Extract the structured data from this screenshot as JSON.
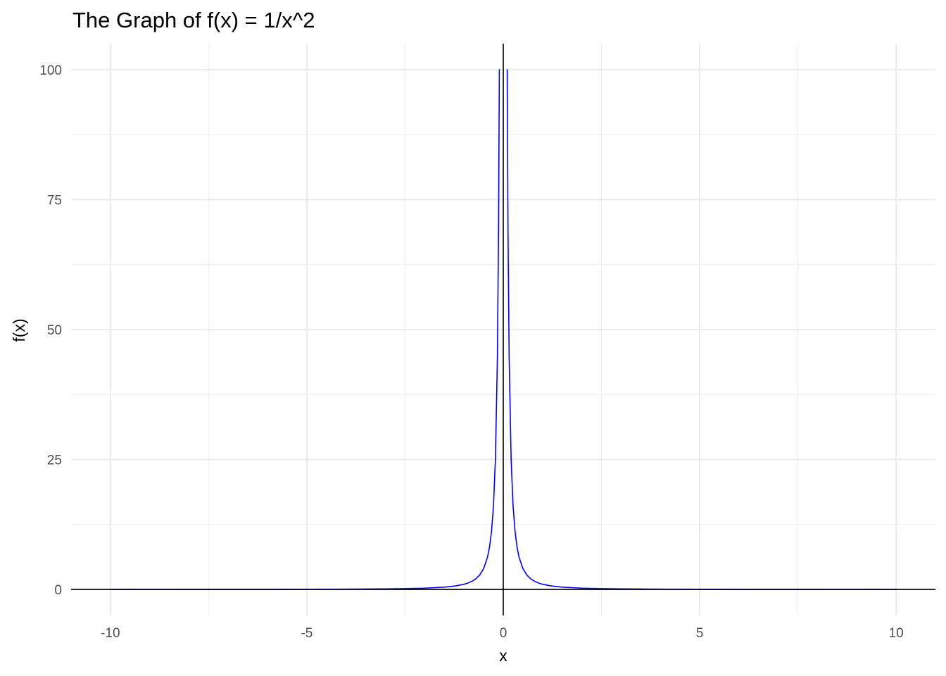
{
  "chart_data": {
    "type": "line",
    "title": "The Graph of f(x) = 1/x^2",
    "xlabel": "x",
    "ylabel": "f(x)",
    "xlim": [
      -11,
      11
    ],
    "ylim": [
      -5,
      105
    ],
    "x_ticks": [
      -10,
      -5,
      0,
      5,
      10
    ],
    "x_tick_labels": [
      "-10",
      "-5",
      "0",
      "5",
      "10"
    ],
    "y_ticks": [
      0,
      25,
      50,
      75,
      100
    ],
    "y_tick_labels": [
      "0",
      "25",
      "50",
      "75",
      "100"
    ],
    "x_minor_ticks": [
      -7.5,
      -2.5,
      2.5,
      7.5
    ],
    "y_minor_ticks": [
      12.5,
      37.5,
      62.5,
      87.5
    ],
    "grid": true,
    "reference_lines": {
      "x": 0,
      "y": 0
    },
    "series": [
      {
        "color": "#0000ff",
        "segments": [
          {
            "x": [
              -10,
              -8,
              -6,
              -5,
              -4,
              -3,
              -2.5,
              -2,
              -1.5,
              -1.2,
              -1,
              -0.9,
              -0.8,
              -0.7,
              -0.6,
              -0.5,
              -0.4,
              -0.35,
              -0.3,
              -0.25,
              -0.2,
              -0.15,
              -0.12,
              -0.1
            ],
            "y": [
              0.01,
              0.0156,
              0.0278,
              0.04,
              0.0625,
              0.111,
              0.16,
              0.25,
              0.444,
              0.694,
              1,
              1.235,
              1.5625,
              2.041,
              2.778,
              4,
              6.25,
              8.163,
              11.11,
              16,
              25,
              44.44,
              69.44,
              100
            ]
          },
          {
            "x": [
              0.1,
              0.12,
              0.15,
              0.2,
              0.25,
              0.3,
              0.35,
              0.4,
              0.5,
              0.6,
              0.7,
              0.8,
              0.9,
              1,
              1.2,
              1.5,
              2,
              2.5,
              3,
              4,
              5,
              6,
              8,
              10
            ],
            "y": [
              100,
              69.44,
              44.44,
              25,
              16,
              11.11,
              8.163,
              6.25,
              4,
              2.778,
              2.041,
              1.5625,
              1.235,
              1,
              0.694,
              0.444,
              0.25,
              0.16,
              0.111,
              0.0625,
              0.04,
              0.0278,
              0.0156,
              0.01
            ]
          }
        ]
      }
    ]
  }
}
